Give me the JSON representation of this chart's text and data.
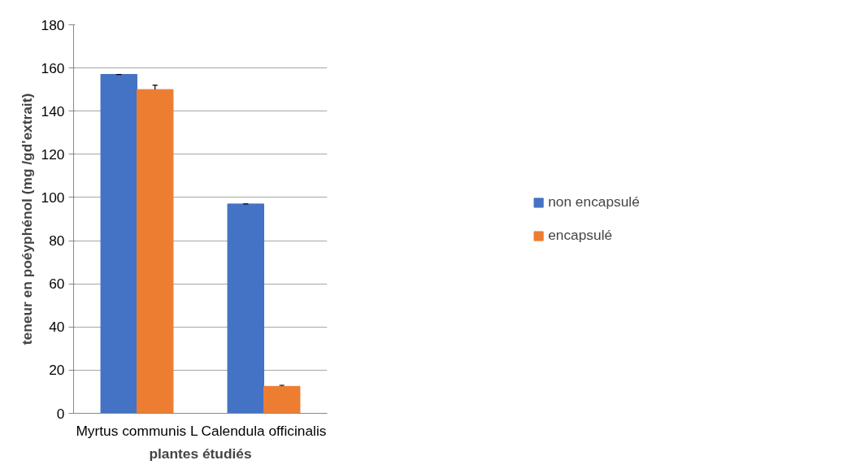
{
  "chart_data": {
    "type": "bar",
    "xlabel": "plantes étudiés",
    "ylabel": "teneur en poéyphénol (mg /gd'extrait)",
    "categories": [
      "Myrtus communis L",
      "Calendula officinalis"
    ],
    "series": [
      {
        "name": "non encapsulé",
        "color": "#4472c4",
        "values": [
          157,
          97
        ],
        "errors": [
          [
            157,
            157
          ],
          [
            97,
            97
          ]
        ]
      },
      {
        "name": "encapsulé",
        "color": "#ed7d31",
        "values": [
          150,
          12.5
        ],
        "errors": [
          [
            150,
            152
          ],
          [
            12.5,
            13
          ]
        ]
      }
    ],
    "ylim": [
      0,
      180
    ],
    "yticks": [
      0,
      20,
      40,
      60,
      80,
      100,
      120,
      140,
      160,
      180
    ],
    "grid": "y",
    "legend": "right"
  }
}
